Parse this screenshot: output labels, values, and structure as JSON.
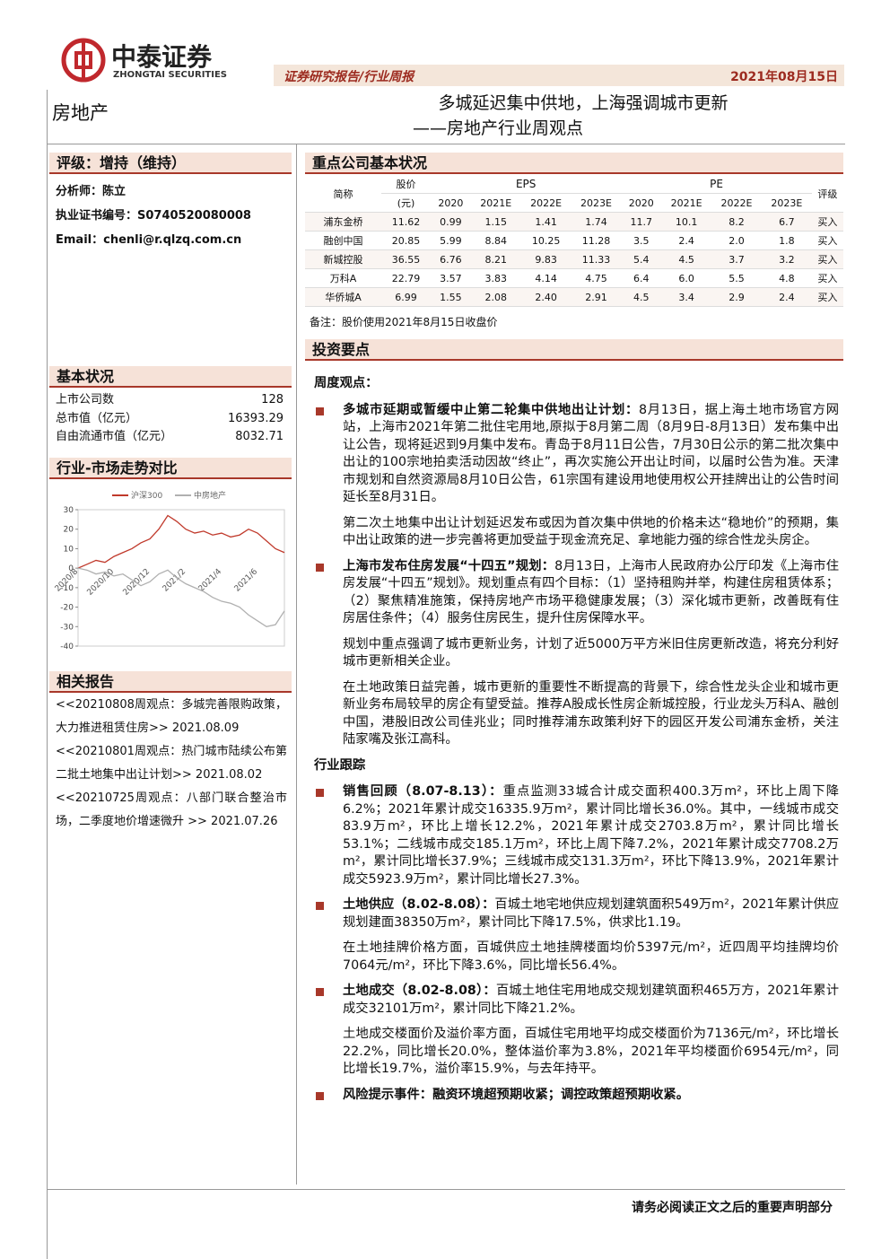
{
  "header": {
    "logo_cn": "中泰证券",
    "logo_en": "ZHONGTAI SECURITIES",
    "report_type": "证券研究报告/行业周报",
    "date": "2021年08月15日",
    "sector": "房地产",
    "title": "多城延迟集中供地，上海强调城市更新",
    "subtitle": "——房地产行业周观点"
  },
  "rating": {
    "label": "评级：",
    "value": "增持（维持）"
  },
  "analyst": [
    {
      "label": "分析师：",
      "value": "陈立"
    },
    {
      "label": "执业证书编号：",
      "value": "S0740520080008"
    },
    {
      "label": "Email：",
      "value": "chenli@r.qlzq.com.cn"
    }
  ],
  "basic_info": {
    "title": "基本状况",
    "rows": [
      [
        "上市公司数",
        "128"
      ],
      [
        "总市值（亿元）",
        "16393.29"
      ],
      [
        "自由流通市值（亿元）",
        "8032.71"
      ]
    ]
  },
  "chart_data": {
    "type": "line",
    "title": "行业-市场走势对比",
    "categories": [
      "2020/8",
      null,
      null,
      null,
      "2020/10",
      null,
      null,
      null,
      "2020/12",
      null,
      null,
      null,
      "2021/2",
      null,
      null,
      null,
      "2021/4",
      null,
      null,
      null,
      "2021/6",
      null,
      null,
      null
    ],
    "series": [
      {
        "name": "沪深300",
        "color": "#c0392b",
        "values": [
          0,
          2,
          4,
          3,
          6,
          8,
          10,
          13,
          15,
          20,
          27,
          24,
          20,
          18,
          19,
          17,
          18,
          16,
          17,
          20,
          18,
          14,
          10,
          8
        ]
      },
      {
        "name": "中房地产",
        "color": "#b0b0b0",
        "values": [
          0,
          -1,
          -3,
          -2,
          -4,
          -3,
          -6,
          -9,
          -7,
          -3,
          -1,
          -5,
          -8,
          -10,
          -12,
          -15,
          -17,
          -18,
          -20,
          -24,
          -27,
          -30,
          -29,
          -22
        ]
      }
    ],
    "ylim": [
      -40,
      30
    ],
    "yticks": [
      -40,
      -30,
      -20,
      -10,
      0,
      10,
      20,
      30
    ],
    "legend": "top"
  },
  "related_reports": {
    "title": "相关报告",
    "items": [
      "<<20210808周观点：多城完善限购政策，大力推进租赁住房>> 2021.08.09",
      "<<20210801周观点：热门城市陆续公布第二批土地集中出让计划>> 2021.08.02",
      "<<20210725周观点：八部门联合整治市场，二季度地价增速微升 >> 2021.07.26"
    ]
  },
  "company_table": {
    "title": "重点公司基本状况",
    "name": "简称",
    "price": "股价",
    "price_unit": "(元)",
    "eps": "EPS",
    "pe": "PE",
    "rating": "评级",
    "eps_years": [
      "2020",
      "2021E",
      "2022E",
      "2023E"
    ],
    "pe_years": [
      "2020",
      "2021E",
      "2022E",
      "2023E"
    ],
    "rows": [
      [
        "浦东金桥",
        "11.62",
        "0.99",
        "1.15",
        "1.41",
        "1.74",
        "11.7",
        "10.1",
        "8.2",
        "6.7",
        "买入"
      ],
      [
        "融创中国",
        "20.85",
        "5.99",
        "8.84",
        "10.25",
        "11.28",
        "3.5",
        "2.4",
        "2.0",
        "1.8",
        "买入"
      ],
      [
        "新城控股",
        "36.55",
        "6.76",
        "8.21",
        "9.83",
        "11.33",
        "5.4",
        "4.5",
        "3.7",
        "3.2",
        "买入"
      ],
      [
        "万科A",
        "22.79",
        "3.57",
        "3.83",
        "4.14",
        "4.75",
        "6.4",
        "6.0",
        "5.5",
        "4.8",
        "买入"
      ],
      [
        "华侨城A",
        "6.99",
        "1.55",
        "2.08",
        "2.40",
        "2.91",
        "4.5",
        "3.4",
        "2.9",
        "2.4",
        "买入"
      ]
    ],
    "note": "备注：股价使用2021年8月15日收盘价"
  },
  "investment": {
    "title": "投资要点",
    "sections": [
      {
        "heading": "周度观点：",
        "items": [
          {
            "lead": "多城市延期或暂缓中止第二轮集中供地出让计划：",
            "text": "8月13日，据上海土地市场官方网站，上海市2021年第二批住宅用地,原拟于8月第二周（8月9日-8月13日）发布集中出让公告，现将延迟到9月集中发布。青岛于8月11日公告，7月30日公示的第二批次集中出让的100宗地拍卖活动因故“终止”，再次实施公开出让时间，以届时公告为准。天津市规划和自然资源局8月10日公告，61宗国有建设用地使用权公开挂牌出让的公告时间延长至8月31日。",
            "paras": [
              "第二次土地集中出让计划延迟发布或因为首次集中供地的价格未达“稳地价”的预期，集中出让政策的进一步完善将更加受益于现金流充足、拿地能力强的综合性龙头房企。"
            ]
          },
          {
            "lead": "上海市发布住房发展“十四五”规划：",
            "text": "8月13日，上海市人民政府办公厅印发《上海市住房发展“十四五”规划》。规划重点有四个目标：（1）坚持租购并举，构建住房租赁体系；（2）聚焦精准施策，保持房地产市场平稳健康发展；（3）深化城市更新，改善既有住房居住条件；（4）服务住房民生，提升住房保障水平。",
            "paras": [
              "规划中重点强调了城市更新业务，计划了近5000万平方米旧住房更新改造，将充分利好城市更新相关企业。",
              "在土地政策日益完善，城市更新的重要性不断提高的背景下，综合性龙头企业和城市更新业务布局较早的房企有望受益。推荐A股成长性房企新城控股，行业龙头万科A、融创中国，港股旧改公司佳兆业；同时推荐浦东政策利好下的园区开发公司浦东金桥，关注陆家嘴及张江高科。"
            ]
          }
        ]
      },
      {
        "heading": "行业跟踪",
        "items": [
          {
            "lead": "销售回顾（8.07-8.13）：",
            "text": "重点监测33城合计成交面积400.3万m²，环比上周下降6.2%；2021年累计成交16335.9万m²，累计同比增长36.0%。其中，一线城市成交83.9万m²，环比上增长12.2%，2021年累计成交2703.8万m²，累计同比增长53.1%；二线城市成交185.1万m²，环比上周下降7.2%，2021年累计成交7708.2万m²，累计同比增长37.9%；三线城市成交131.3万m²，环比下降13.9%，2021年累计成交5923.9万m²，累计同比增长27.3%。",
            "paras": []
          },
          {
            "lead": "土地供应（8.02-8.08）：",
            "text": "百城土地宅地供应规划建筑面积549万m²，2021年累计供应规划建面38350万m²，累计同比下降17.5%，供求比1.19。",
            "paras": [
              "在土地挂牌价格方面，百城供应土地挂牌楼面均价5397元/m²，近四周平均挂牌均价7064元/m²，环比下降3.6%，同比增长56.4%。"
            ]
          },
          {
            "lead": "土地成交（8.02-8.08）：",
            "text": "百城土地住宅用地成交规划建筑面积465万方，2021年累计成交32101万m²，累计同比下降21.2%。",
            "paras": [
              "土地成交楼面价及溢价率方面，百城住宅用地平均成交楼面价为7136元/m²，环比增长22.2%，同比增长20.0%，整体溢价率为3.8%，2021年平均楼面价6954元/m²，同比增长19.7%，溢价率15.9%，与去年持平。"
            ]
          },
          {
            "lead": "风险提示事件：融资环境超预期收紧；调控政策超预期收紧。",
            "text": "",
            "paras": []
          }
        ]
      }
    ]
  },
  "footer": "请务必阅读正文之后的重要声明部分"
}
